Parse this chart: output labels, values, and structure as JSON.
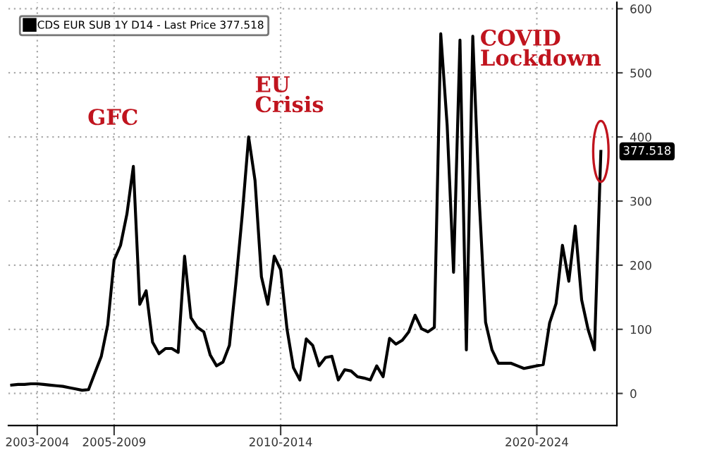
{
  "chart_data": {
    "type": "line",
    "categories": [
      null,
      null,
      null,
      null,
      "2003-2004",
      null,
      null,
      null,
      null,
      null,
      null,
      null,
      null,
      null,
      null,
      null,
      "2005-2009",
      null,
      null,
      null,
      null,
      null,
      null,
      null,
      null,
      null,
      null,
      null,
      null,
      null,
      null,
      null,
      null,
      null,
      null,
      null,
      null,
      null,
      null,
      null,
      null,
      null,
      "2010-2014",
      null,
      null,
      null,
      null,
      null,
      null,
      null,
      null,
      null,
      null,
      null,
      null,
      null,
      null,
      null,
      null,
      null,
      null,
      null,
      null,
      null,
      null,
      null,
      null,
      null,
      null,
      null,
      null,
      null,
      null,
      null,
      null,
      null,
      null,
      null,
      null,
      null,
      null,
      null,
      "2020-2024",
      null,
      null,
      null,
      null,
      null,
      null,
      null,
      null,
      null,
      null
    ],
    "series": [
      {
        "name": "CDS EUR SUB 1Y D14 - Last Price 377.518",
        "color": "#000000",
        "values": [
          13,
          14,
          14,
          15,
          15,
          14,
          13,
          12,
          11,
          9,
          7,
          5,
          6,
          32,
          58,
          107,
          208,
          231,
          280,
          354,
          139,
          160,
          80,
          62,
          70,
          70,
          64,
          214,
          118,
          103,
          96,
          60,
          43,
          49,
          75,
          171,
          278,
          400,
          332,
          182,
          139,
          214,
          193,
          100,
          40,
          21,
          85,
          75,
          43,
          56,
          58,
          21,
          37,
          35,
          26,
          24,
          21,
          43,
          26,
          86,
          77,
          83,
          96,
          122,
          101,
          96,
          103,
          561,
          418,
          189,
          551,
          68,
          557,
          304,
          111,
          68,
          47,
          47,
          47,
          43,
          39,
          41,
          43,
          45,
          110,
          140,
          231,
          175,
          261,
          146,
          100,
          68,
          377.5
        ]
      }
    ],
    "ylim": [
      -50,
      610
    ],
    "yticks": [
      0,
      100,
      200,
      300,
      400,
      500,
      600
    ],
    "annotations": [
      "GFC",
      "EU\nCrisis",
      "COVID\nLockdown",
      "377.518"
    ],
    "grid": true,
    "legend": "top left",
    "line_style": "solid",
    "marker": "none"
  }
}
